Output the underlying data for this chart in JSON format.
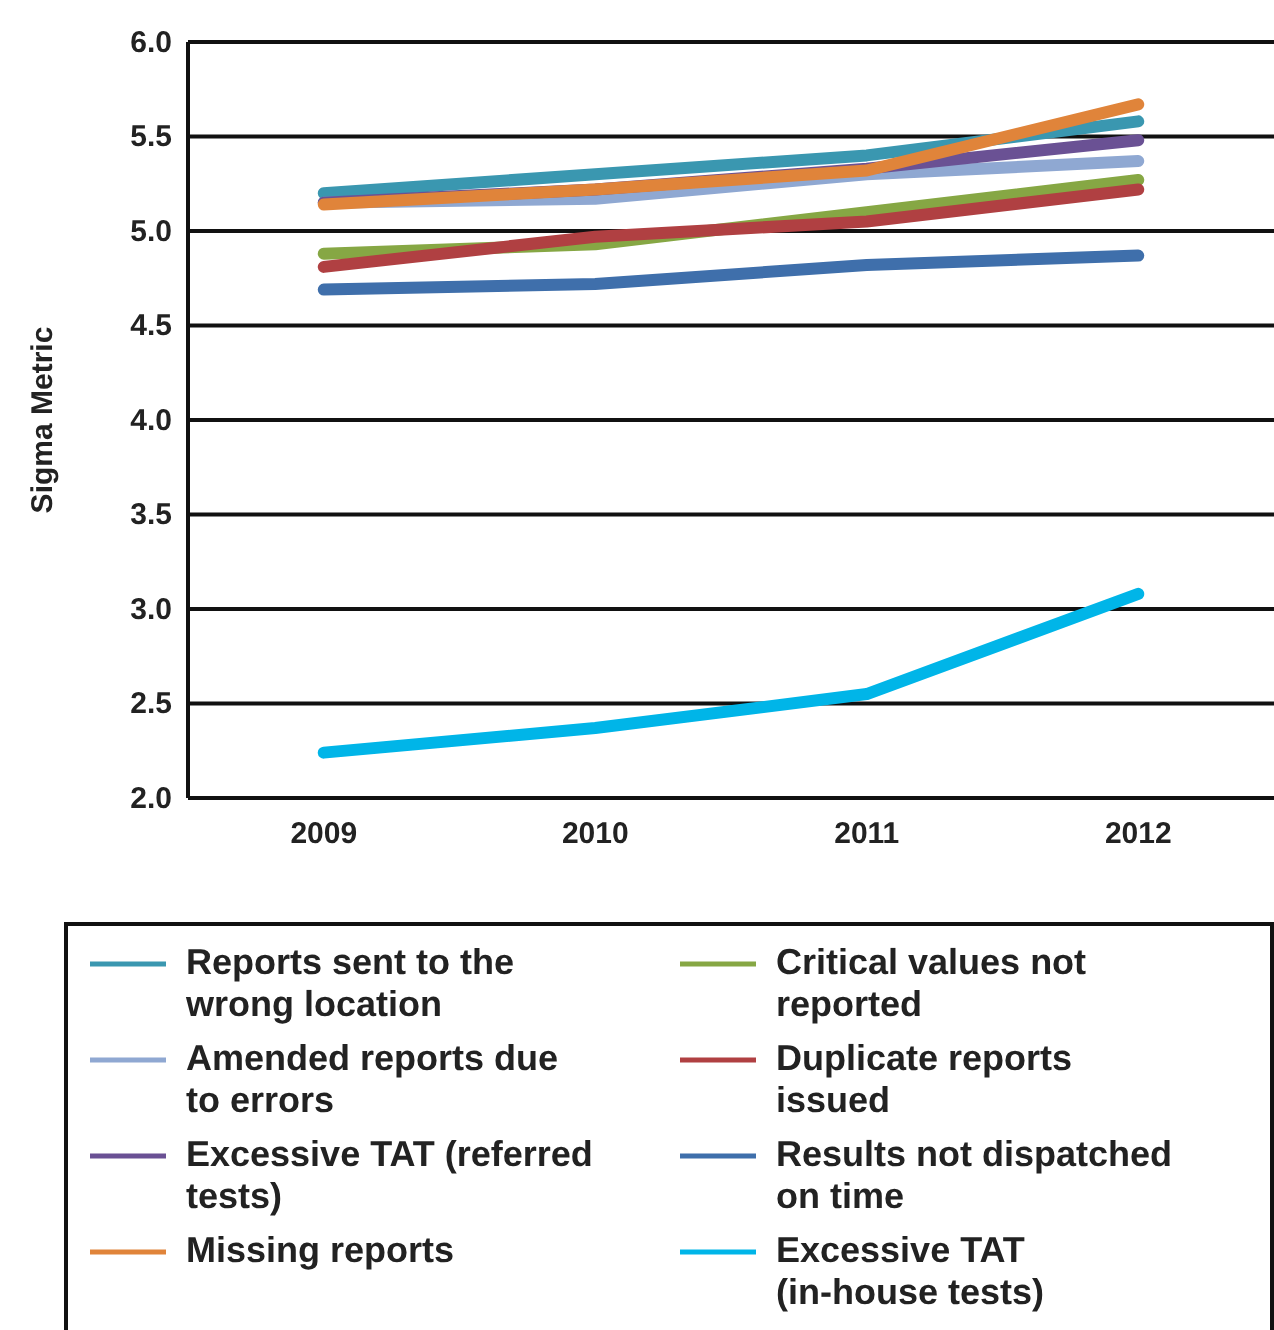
{
  "chart_data": {
    "type": "line",
    "ylabel": "Sigma Metric",
    "categories": [
      "2009",
      "2010",
      "2011",
      "2012"
    ],
    "ylim": [
      2,
      6
    ],
    "yticks": [
      {
        "value": 2,
        "label": "2.0"
      },
      {
        "value": 2.5,
        "label": "2.5"
      },
      {
        "value": 3,
        "label": "3.0"
      },
      {
        "value": 3.5,
        "label": "3.5"
      },
      {
        "value": 4,
        "label": "4.0"
      },
      {
        "value": 4.5,
        "label": "4.5"
      },
      {
        "value": 5,
        "label": "5.0"
      },
      {
        "value": 5.5,
        "label": "5.5"
      },
      {
        "value": 6,
        "label": "6.0"
      }
    ],
    "grid": "y",
    "legend": "bottom",
    "marker": "none",
    "line_style": "solid",
    "series": [
      {
        "name": "Reports sent to the wrong location",
        "color": "#3a97b0",
        "values": [
          5.2,
          5.3,
          5.4,
          5.58
        ]
      },
      {
        "name": "Amended reports due to errors",
        "color": "#8fa8d2",
        "values": [
          5.15,
          5.17,
          5.3,
          5.37
        ]
      },
      {
        "name": "Excessive TAT (referred tests)",
        "color": "#6a5194",
        "values": [
          5.15,
          5.22,
          5.33,
          5.48
        ]
      },
      {
        "name": "Missing reports",
        "color": "#e0843a",
        "values": [
          5.14,
          5.22,
          5.32,
          5.67
        ]
      },
      {
        "name": "Critical values not reported",
        "color": "#86a744",
        "values": [
          4.88,
          4.93,
          5.1,
          5.27
        ]
      },
      {
        "name": "Duplicate reports issued",
        "color": "#b04042",
        "values": [
          4.81,
          4.97,
          5.05,
          5.22
        ]
      },
      {
        "name": "Results not dispatched on time",
        "color": "#3f6fab",
        "values": [
          4.69,
          4.72,
          4.82,
          4.87
        ]
      },
      {
        "name": "Excessive TAT (in-house tests)",
        "color": "#00b5e8",
        "values": [
          2.24,
          2.37,
          2.55,
          3.08
        ]
      }
    ]
  }
}
